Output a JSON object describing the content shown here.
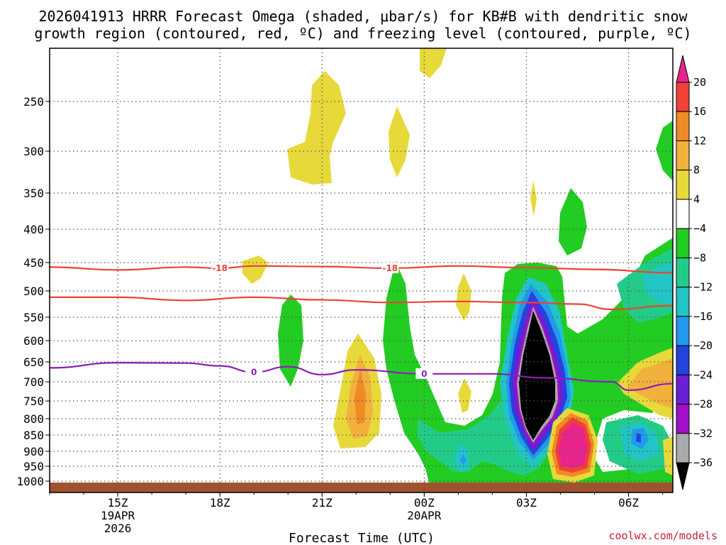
{
  "chart_data": {
    "type": "heatmap",
    "title_line1": "2026041913 HRRR Forecast Omega (shaded, μbar/s) for KB#B with dendritic snow",
    "title_line2": "growth region (contoured, red, ºC) and freezing level (contoured, purple, ºC)",
    "xlabel": "Forecast Time (UTC)",
    "credit": "coolwx.com/models",
    "x_range_hours": [
      13.0,
      31.3
    ],
    "y_range_hpa": [
      1030,
      195
    ],
    "y_ticks": [
      "250",
      "300",
      "350",
      "400",
      "450",
      "500",
      "550",
      "600",
      "650",
      "700",
      "750",
      "800",
      "850",
      "900",
      "950",
      "1000"
    ],
    "x_ticks": [
      {
        "hour": 15,
        "label": "15Z",
        "sub1": "19APR",
        "sub2": "2026"
      },
      {
        "hour": 18,
        "label": "18Z",
        "sub1": "",
        "sub2": ""
      },
      {
        "hour": 21,
        "label": "21Z",
        "sub1": "",
        "sub2": ""
      },
      {
        "hour": 24,
        "label": "00Z",
        "sub1": "20APR",
        "sub2": ""
      },
      {
        "hour": 27,
        "label": "03Z",
        "sub1": "",
        "sub2": ""
      },
      {
        "hour": 30,
        "label": "06Z",
        "sub1": "",
        "sub2": ""
      }
    ],
    "colorbar": {
      "labels": [
        "20",
        "16",
        "12",
        "8",
        "4",
        "−4",
        "−8",
        "−12",
        "−16",
        "−20",
        "−24",
        "−28",
        "−32",
        "−36"
      ],
      "colors": [
        "#e8248c",
        "#ef4137",
        "#f08a24",
        "#f2b13c",
        "#e8d93a",
        "#ffffff",
        "#22cc22",
        "#22cc88",
        "#22c4c4",
        "#2299ee",
        "#2244dd",
        "#6a1fd6",
        "#a010c8",
        "#aaaaaa",
        "#000000"
      ]
    },
    "contours": [
      {
        "name": "dgz-upper",
        "color": "#ef4137",
        "label": "-18",
        "points": [
          [
            13,
            458
          ],
          [
            15,
            463
          ],
          [
            17,
            458
          ],
          [
            18,
            460
          ],
          [
            19,
            456
          ],
          [
            21,
            457
          ],
          [
            23,
            460
          ],
          [
            25,
            456
          ],
          [
            27,
            459
          ],
          [
            29,
            462
          ],
          [
            31.3,
            468
          ]
        ]
      },
      {
        "name": "dgz-lower",
        "color": "#ef4137",
        "label": "",
        "points": [
          [
            13,
            512
          ],
          [
            15,
            512
          ],
          [
            17,
            518
          ],
          [
            19,
            512
          ],
          [
            21,
            517
          ],
          [
            23,
            522
          ],
          [
            25,
            520
          ],
          [
            27,
            522
          ],
          [
            28.5,
            525
          ],
          [
            29.5,
            535
          ],
          [
            31.3,
            528
          ]
        ]
      },
      {
        "name": "freezing-level",
        "color": "#8a1fb8",
        "label": "0",
        "points": [
          [
            13,
            665
          ],
          [
            15,
            652
          ],
          [
            17,
            653
          ],
          [
            18,
            660
          ],
          [
            19,
            676
          ],
          [
            20,
            662
          ],
          [
            21,
            682
          ],
          [
            22,
            670
          ],
          [
            24,
            680
          ],
          [
            26,
            680
          ],
          [
            27.5,
            690
          ],
          [
            29.5,
            700
          ],
          [
            30,
            722
          ],
          [
            31.3,
            705
          ]
        ]
      }
    ]
  }
}
